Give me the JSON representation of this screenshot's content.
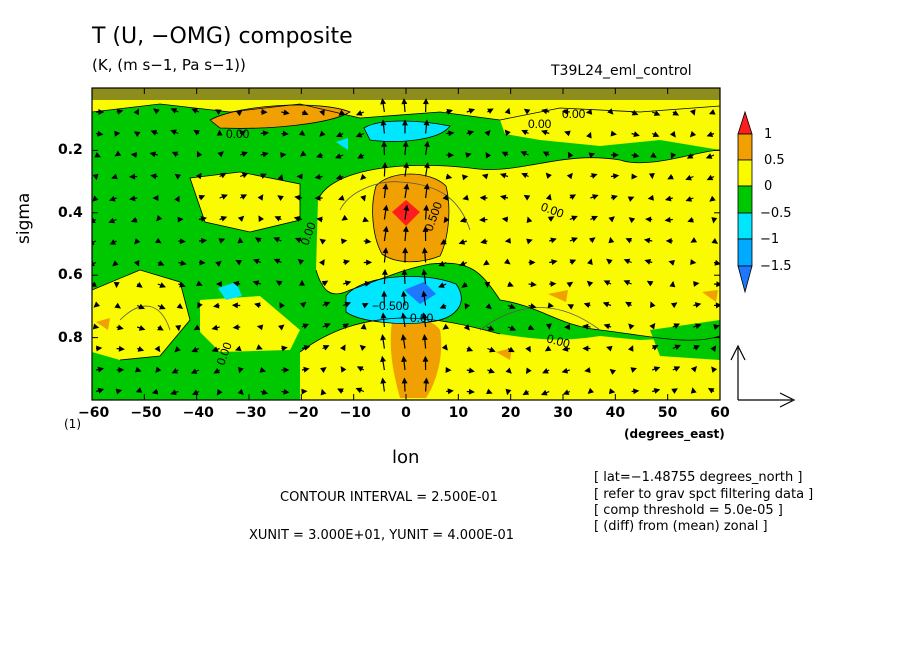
{
  "header": {
    "title": "T (U, −OMG) composite",
    "subtitle": "(K, (m s−1, Pa s−1))",
    "run_name": "T39L24_eml_control"
  },
  "axes": {
    "ylabel": "sigma",
    "xlabel": "lon",
    "xunit_label": "(degrees_east)",
    "level_marker": "(1)"
  },
  "notes": {
    "contour_interval": "CONTOUR INTERVAL = 2.500E-01",
    "xy_unit": "XUNIT = 3.000E+01, YUNIT = 4.000E-01",
    "info": [
      "[ lat=−1.48755 degrees_north ]",
      "[ refer to grav spct filtering data ]",
      "[ comp threshold = 5.0e-05 ]",
      "[ (diff) from (mean) zonal ]"
    ]
  },
  "colors": {
    "lt_neg1_5": "#1e78ff",
    "neg1_5_to_neg1": "#00d2ff",
    "neg1_to_neg0_5": "#00e6ff",
    "neg0_5_to_0": "#00c800",
    "zero_to_0_5": "#fafa00",
    "0_5_to_1": "#f0a000",
    "gt_1": "#ff1e1e"
  },
  "chart_data": {
    "type": "heatmap",
    "title": "T (U, −OMG) composite",
    "subtitle": "(K, (m s−1, Pa s−1))",
    "xlabel": "lon",
    "ylabel": "sigma",
    "xlim": [
      -60,
      60
    ],
    "ylim": [
      0.0,
      1.0
    ],
    "y_inverted": true,
    "x_ticks": [
      -60,
      -50,
      -40,
      -30,
      -20,
      -10,
      0,
      10,
      20,
      30,
      40,
      50,
      60
    ],
    "x_tick_labels": [
      "−60",
      "−50",
      "−40",
      "−30",
      "−20",
      "−10",
      "0",
      "10",
      "20",
      "30",
      "40",
      "50",
      "60"
    ],
    "y_ticks": [
      0.2,
      0.4,
      0.6,
      0.8
    ],
    "y_tick_labels": [
      "0.2",
      "0.4",
      "0.6",
      "0.8"
    ],
    "colorbar": {
      "levels": [
        -1.5,
        -1,
        -0.5,
        0,
        0.5,
        1
      ],
      "labels": [
        "−1.5",
        "−1",
        "−0.5",
        "0",
        "0.5",
        "1"
      ]
    },
    "contour_interval": 0.25,
    "contour_labels": [
      "0.00",
      "−0.500",
      "0.500"
    ],
    "features": [
      {
        "lon": 0,
        "sigma": 0.42,
        "value": 1.1
      },
      {
        "lon": 0,
        "sigma": 0.66,
        "value": -1.6
      },
      {
        "lon": -25,
        "sigma": 0.1,
        "value": 0.7
      },
      {
        "lon": -3,
        "sigma": 0.12,
        "value": -0.8
      },
      {
        "lon": 0,
        "sigma": 0.85,
        "value": 0.6
      }
    ],
    "vector_ref": {
      "xunit": 30.0,
      "yunit": 0.4
    }
  }
}
